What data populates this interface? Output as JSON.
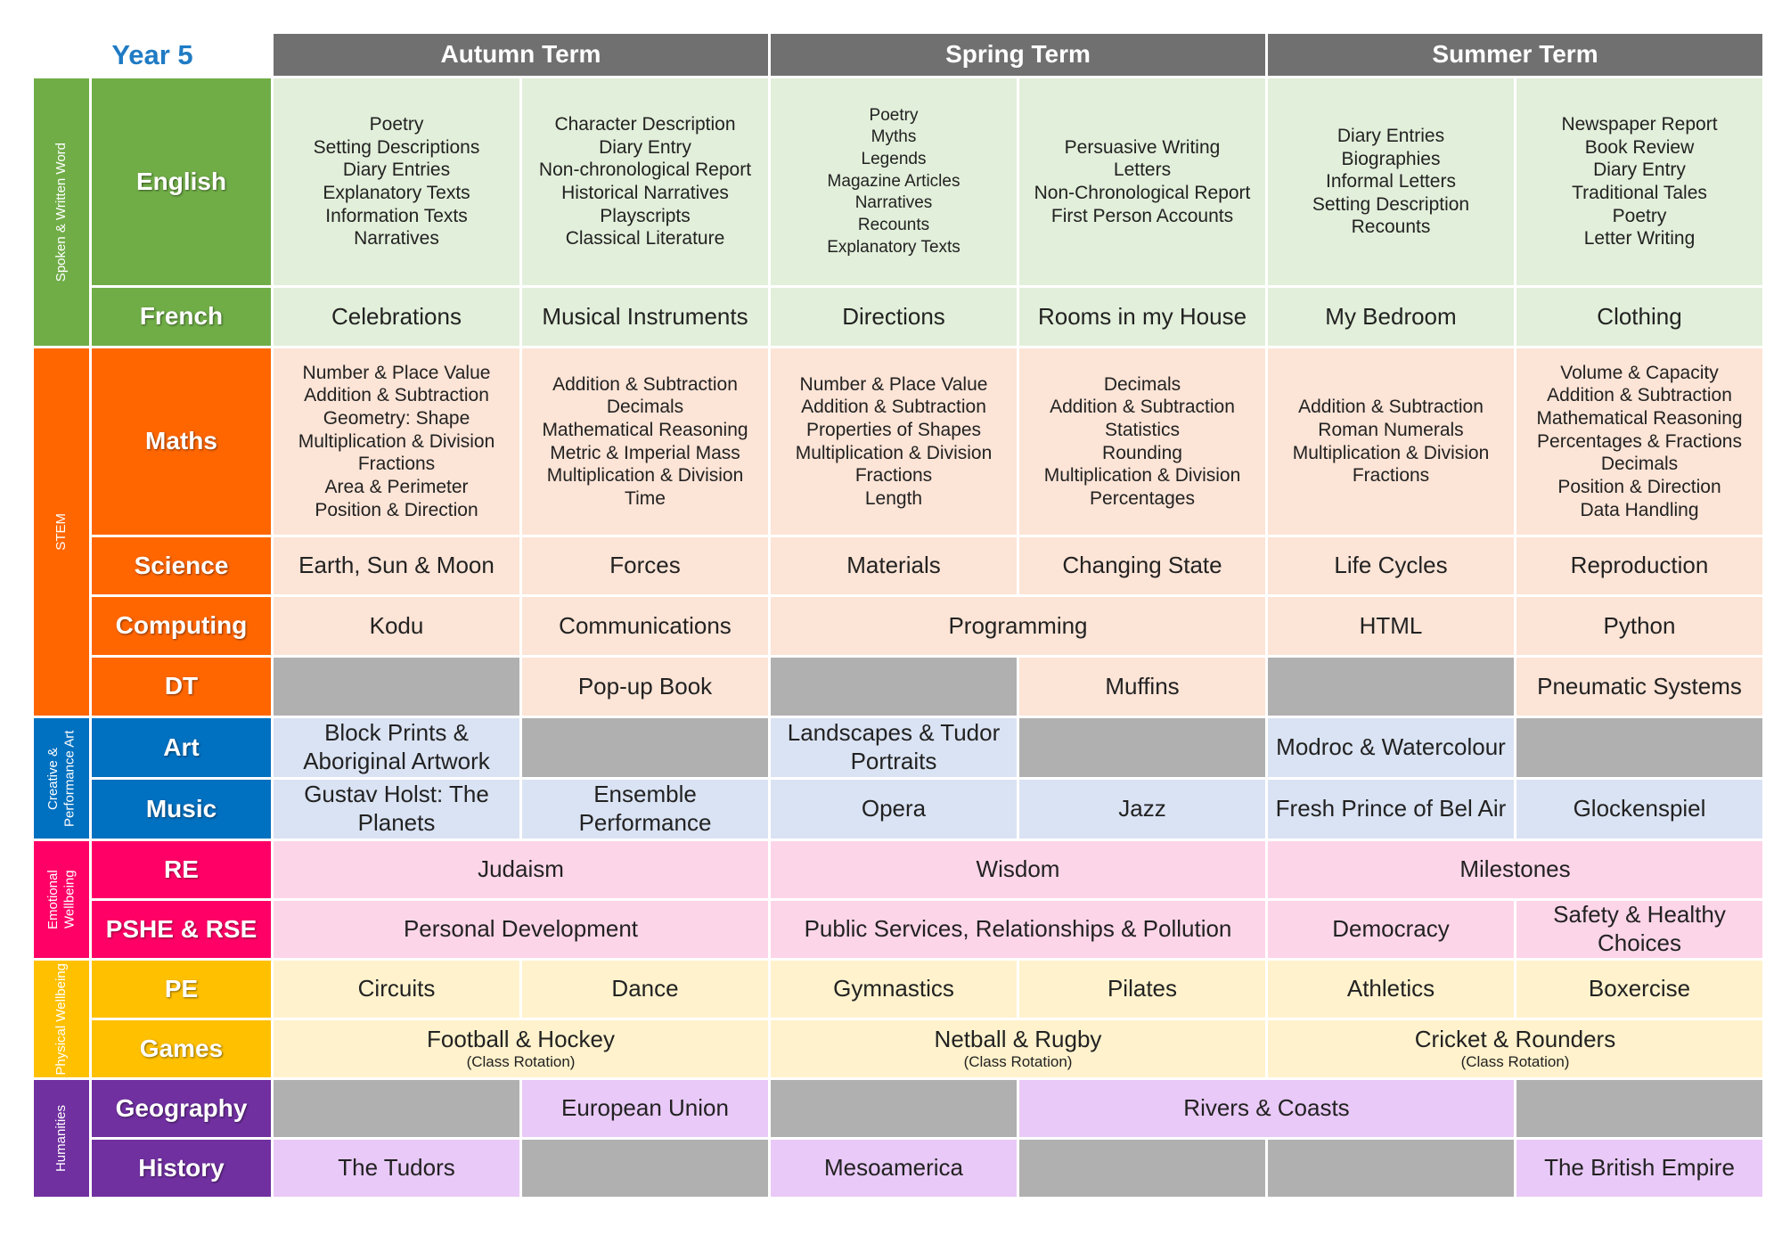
{
  "title": "Year 5",
  "terms": [
    "Autumn Term",
    "Spring Term",
    "Summer Term"
  ],
  "groups": [
    {
      "name": "Spoken & Written Word",
      "subjects": [
        {
          "name": "English",
          "cells": [
            [
              "Poetry",
              "Setting Descriptions",
              "Diary Entries",
              "Explanatory Texts",
              "Information Texts",
              "Narratives"
            ],
            [
              "Character Description",
              "Diary Entry",
              "Non-chronological Report",
              "Historical Narratives",
              "Playscripts",
              "Classical Literature"
            ],
            [
              "Poetry",
              "Myths",
              "Legends",
              "Magazine Articles",
              "Narratives",
              "Recounts",
              "Explanatory Texts"
            ],
            [
              "Persuasive Writing",
              "Letters",
              "Non-Chronological Report",
              "First Person Accounts"
            ],
            [
              "Diary Entries",
              "Biographies",
              "Informal Letters",
              "Setting Description",
              "Recounts"
            ],
            [
              "Newspaper Report",
              "Book Review",
              "Diary Entry",
              "Traditional Tales",
              "Poetry",
              "Letter Writing"
            ]
          ]
        },
        {
          "name": "French",
          "cells": [
            "Celebrations",
            "Musical Instruments",
            "Directions",
            "Rooms in my House",
            "My Bedroom",
            "Clothing"
          ]
        }
      ]
    },
    {
      "name": "STEM",
      "subjects": [
        {
          "name": "Maths",
          "cells": [
            [
              "Number & Place Value",
              "Addition & Subtraction",
              "Geometry: Shape",
              "Multiplication & Division",
              "Fractions",
              "Area & Perimeter",
              "Position & Direction"
            ],
            [
              "Addition & Subtraction",
              "Decimals",
              "Mathematical Reasoning",
              "Metric & Imperial Mass",
              "Multiplication & Division",
              "Time"
            ],
            [
              "Number & Place Value",
              "Addition & Subtraction",
              "Properties of Shapes",
              "Multiplication & Division",
              "Fractions",
              "Length"
            ],
            [
              "Decimals",
              "Addition & Subtraction",
              "Statistics",
              "Rounding",
              "Multiplication & Division",
              "Percentages"
            ],
            [
              "Addition & Subtraction",
              "Roman Numerals",
              "Multiplication & Division",
              "Fractions"
            ],
            [
              "Volume & Capacity",
              "Addition & Subtraction",
              "Mathematical Reasoning",
              "Percentages & Fractions",
              "Decimals",
              "Position & Direction",
              "Data Handling"
            ]
          ]
        },
        {
          "name": "Science",
          "cells": [
            "Earth, Sun & Moon",
            "Forces",
            "Materials",
            "Changing State",
            "Life Cycles",
            "Reproduction"
          ]
        },
        {
          "name": "Computing",
          "cells": [
            "Kodu",
            "Communications",
            "Programming",
            "HTML",
            "Python"
          ]
        },
        {
          "name": "DT",
          "cells": [
            null,
            "Pop-up Book",
            null,
            "Muffins",
            null,
            "Pneumatic Systems"
          ]
        }
      ]
    },
    {
      "name": "Creative & Performance Art",
      "subjects": [
        {
          "name": "Art",
          "cells": [
            "Block Prints & Aboriginal Artwork",
            null,
            "Landscapes & Tudor Portraits",
            null,
            "Modroc & Watercolour",
            null
          ]
        },
        {
          "name": "Music",
          "cells": [
            "Gustav Holst: The Planets",
            "Ensemble Performance",
            "Opera",
            "Jazz",
            "Fresh Prince of Bel Air",
            "Glockenspiel"
          ]
        }
      ]
    },
    {
      "name": "Emotional Wellbeing",
      "subjects": [
        {
          "name": "RE",
          "cells": [
            "Judaism",
            "Wisdom",
            "Milestones"
          ]
        },
        {
          "name": "PSHE & RSE",
          "cells": [
            "Personal Development",
            "Public Services, Relationships & Pollution",
            "Democracy",
            "Safety & Healthy Choices"
          ]
        }
      ]
    },
    {
      "name": "Physical Wellbeing",
      "subjects": [
        {
          "name": "PE",
          "cells": [
            "Circuits",
            "Dance",
            "Gymnastics",
            "Pilates",
            "Athletics",
            "Boxercise"
          ]
        },
        {
          "name": "Games",
          "cells": [
            [
              "Football & Hockey",
              "(Class Rotation)"
            ],
            [
              "Netball & Rugby",
              "(Class Rotation)"
            ],
            [
              "Cricket & Rounders",
              "(Class Rotation)"
            ]
          ]
        }
      ]
    },
    {
      "name": "Humanities",
      "subjects": [
        {
          "name": "Geography",
          "cells": [
            null,
            "European Union",
            null,
            "Rivers & Coasts",
            null
          ]
        },
        {
          "name": "History",
          "cells": [
            "The Tudors",
            null,
            "Mesoamerica",
            null,
            null,
            "The British Empire"
          ]
        }
      ]
    }
  ]
}
